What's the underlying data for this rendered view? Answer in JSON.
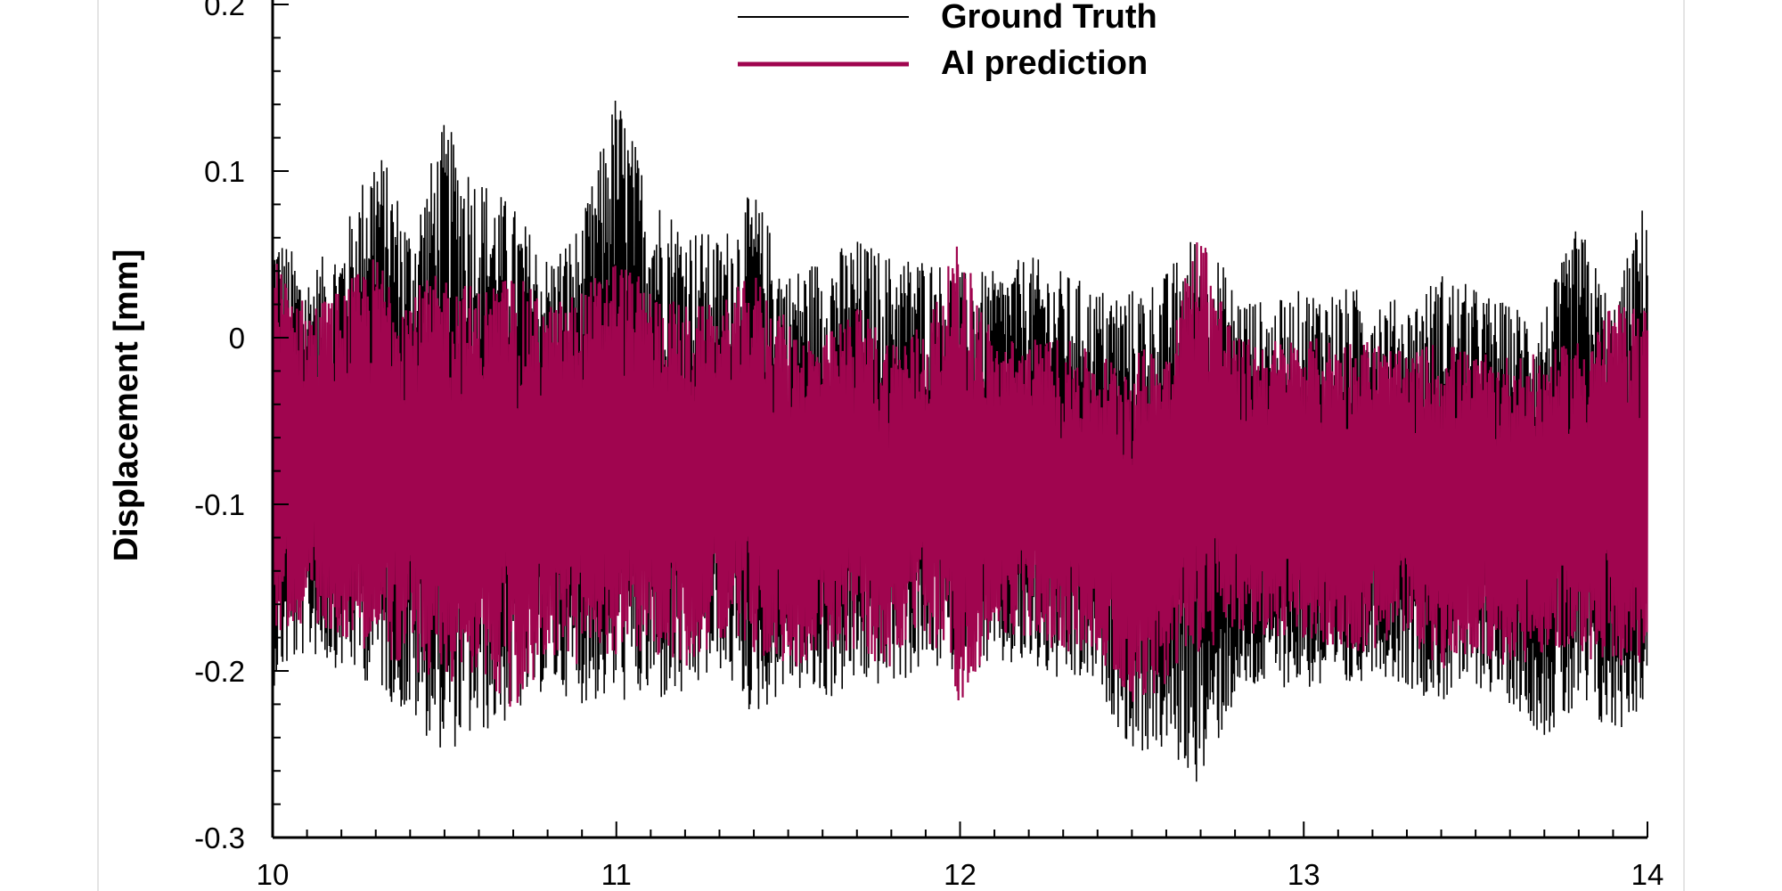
{
  "chart_data": {
    "type": "line",
    "title": "",
    "xlabel": "",
    "ylabel": "Displacement [mm]",
    "xlim": [
      10,
      14
    ],
    "ylim": [
      -0.3,
      0.2
    ],
    "x_ticks": [
      "10",
      "11",
      "12",
      "13",
      "14"
    ],
    "y_ticks": [
      "-0.3",
      "-0.2",
      "-0.1",
      "0",
      "0.1",
      "0.2"
    ],
    "grid": false,
    "legend_position": "top-center",
    "series": [
      {
        "name": "Ground Truth",
        "color": "#000000",
        "x": [
          10.0,
          10.1,
          10.2,
          10.3,
          10.4,
          10.5,
          10.6,
          10.7,
          10.8,
          10.9,
          11.0,
          11.1,
          11.2,
          11.3,
          11.4,
          11.5,
          11.6,
          11.7,
          11.8,
          11.9,
          12.0,
          12.1,
          12.2,
          12.3,
          12.4,
          12.5,
          12.6,
          12.7,
          12.8,
          12.9,
          13.0,
          13.1,
          13.2,
          13.3,
          13.4,
          13.5,
          13.6,
          13.7,
          13.8,
          13.9,
          14.0
        ],
        "upper": [
          0.07,
          0.04,
          0.06,
          0.12,
          0.07,
          0.13,
          0.1,
          0.08,
          0.05,
          0.07,
          0.15,
          0.09,
          0.07,
          0.06,
          0.09,
          0.04,
          0.05,
          0.06,
          0.05,
          0.05,
          0.04,
          0.04,
          0.05,
          0.04,
          0.03,
          0.03,
          0.04,
          0.07,
          0.03,
          0.02,
          0.03,
          0.03,
          0.03,
          0.02,
          0.04,
          0.03,
          0.02,
          0.02,
          0.07,
          0.02,
          0.09
        ],
        "lower": [
          -0.21,
          -0.19,
          -0.2,
          -0.21,
          -0.23,
          -0.25,
          -0.24,
          -0.23,
          -0.21,
          -0.22,
          -0.22,
          -0.22,
          -0.22,
          -0.2,
          -0.23,
          -0.21,
          -0.22,
          -0.21,
          -0.21,
          -0.2,
          -0.2,
          -0.2,
          -0.2,
          -0.21,
          -0.21,
          -0.25,
          -0.25,
          -0.27,
          -0.22,
          -0.21,
          -0.21,
          -0.22,
          -0.2,
          -0.21,
          -0.22,
          -0.21,
          -0.22,
          -0.24,
          -0.23,
          -0.24,
          -0.22
        ]
      },
      {
        "name": "AI prediction",
        "color": "#a0054f",
        "x": [
          10.0,
          10.1,
          10.2,
          10.3,
          10.4,
          10.5,
          10.6,
          10.7,
          10.8,
          10.9,
          11.0,
          11.1,
          11.2,
          11.3,
          11.4,
          11.5,
          11.6,
          11.7,
          11.8,
          11.9,
          12.0,
          12.1,
          12.2,
          12.3,
          12.4,
          12.5,
          12.6,
          12.7,
          12.8,
          12.9,
          13.0,
          13.1,
          13.2,
          13.3,
          13.4,
          13.5,
          13.6,
          13.7,
          13.8,
          13.9,
          14.0
        ],
        "upper": [
          0.05,
          0.02,
          0.03,
          0.05,
          0.03,
          0.04,
          0.03,
          0.04,
          0.02,
          0.03,
          0.05,
          0.03,
          0.02,
          0.02,
          0.04,
          0.01,
          0.0,
          0.02,
          0.0,
          0.01,
          0.06,
          0.0,
          0.0,
          0.0,
          -0.01,
          -0.01,
          0.0,
          0.07,
          0.0,
          0.0,
          0.0,
          0.0,
          0.0,
          -0.01,
          0.0,
          -0.01,
          -0.01,
          -0.01,
          0.0,
          0.02,
          0.02
        ],
        "lower": [
          -0.18,
          -0.17,
          -0.18,
          -0.19,
          -0.2,
          -0.21,
          -0.2,
          -0.23,
          -0.19,
          -0.2,
          -0.19,
          -0.19,
          -0.2,
          -0.18,
          -0.19,
          -0.2,
          -0.19,
          -0.19,
          -0.2,
          -0.18,
          -0.22,
          -0.18,
          -0.18,
          -0.19,
          -0.19,
          -0.22,
          -0.21,
          -0.19,
          -0.18,
          -0.18,
          -0.18,
          -0.19,
          -0.19,
          -0.18,
          -0.2,
          -0.19,
          -0.2,
          -0.19,
          -0.19,
          -0.2,
          -0.2
        ]
      }
    ]
  }
}
